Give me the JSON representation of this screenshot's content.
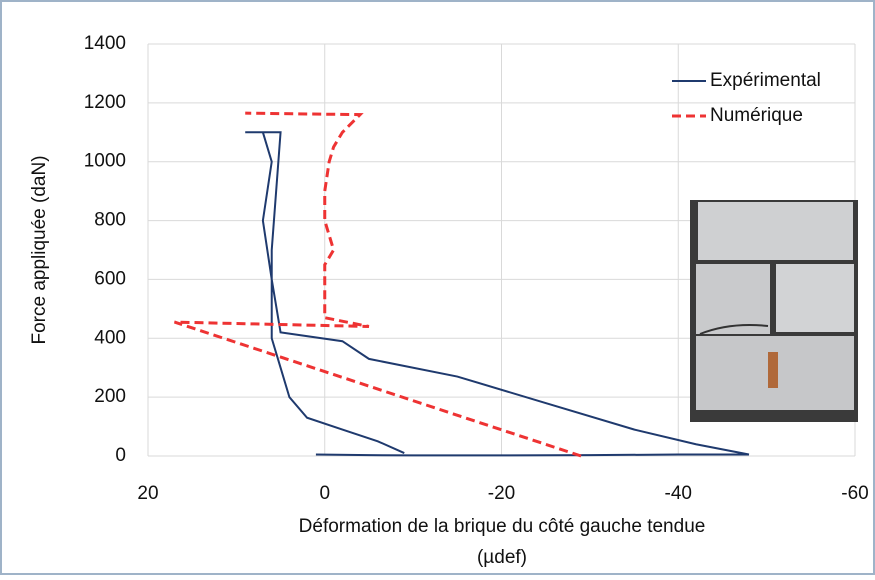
{
  "chart_data": {
    "type": "line",
    "ylabel": "Force appliquée (daN)",
    "xlabel": [
      "Déformation de la brique du côté gauche tendue",
      "(µdef)"
    ],
    "xlim": [
      20,
      -60
    ],
    "xticks": [
      20,
      0,
      -20,
      -40,
      -60
    ],
    "ylim": [
      0,
      1400
    ],
    "yticks": [
      0,
      200,
      400,
      600,
      800,
      1000,
      1200,
      1400
    ],
    "grid": true,
    "legend": "top-right",
    "series": [
      {
        "name": "Expérimental",
        "color": "#1f3a6e",
        "dash": false,
        "x": [
          1,
          -5,
          -10,
          -20,
          -30,
          -40,
          -48,
          -42,
          -35,
          -25,
          -15,
          -5,
          -2,
          5,
          6,
          7,
          6,
          7,
          9,
          5,
          6,
          6,
          5,
          4,
          2,
          -2,
          -6,
          -9
        ],
        "values": [
          5,
          3,
          2,
          2,
          3,
          5,
          5,
          40,
          90,
          180,
          270,
          330,
          390,
          420,
          600,
          800,
          1000,
          1100,
          1100,
          1100,
          700,
          400,
          300,
          200,
          130,
          90,
          50,
          10
        ]
      },
      {
        "name": "Numérique",
        "color": "#ee3333",
        "dash": true,
        "x": [
          -29,
          17,
          -5,
          0,
          0,
          -1,
          0,
          0,
          -0.5,
          -1,
          -2,
          -4,
          9
        ],
        "values": [
          0,
          455,
          440,
          470,
          650,
          700,
          800,
          900,
          1000,
          1050,
          1100,
          1160,
          1165
        ]
      }
    ]
  }
}
